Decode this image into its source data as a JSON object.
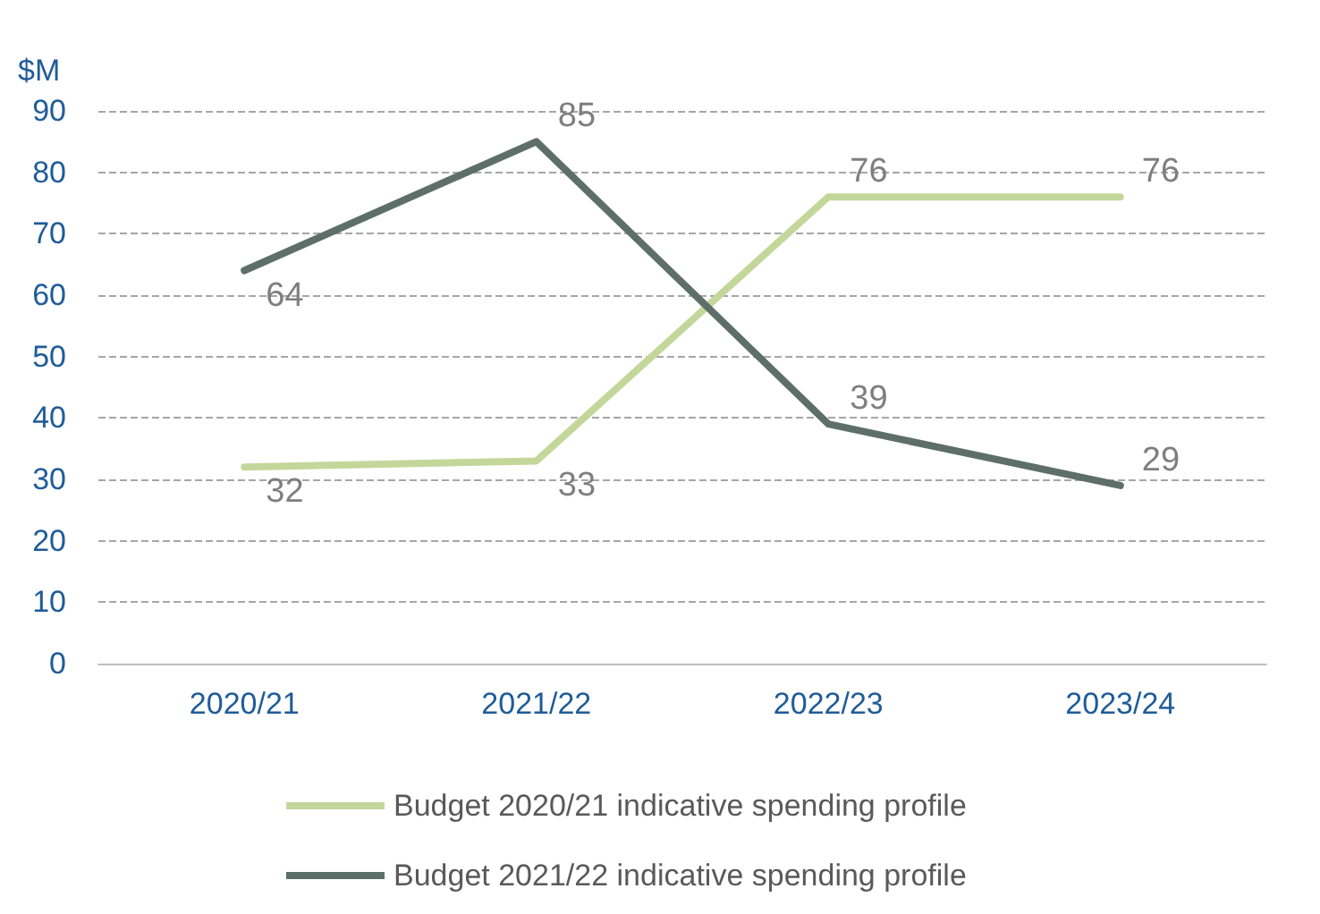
{
  "chart_data": {
    "type": "line",
    "ylabel": "$M",
    "categories": [
      "2020/21",
      "2021/22",
      "2022/23",
      "2023/24"
    ],
    "series": [
      {
        "name": "Budget 2020/21 indicative spending profile",
        "color": "#c4d79b",
        "values": [
          32,
          33,
          76,
          76
        ]
      },
      {
        "name": "Budget 2021/22 indicative spending profile",
        "color": "#5d6f68",
        "values": [
          64,
          85,
          39,
          29
        ]
      }
    ],
    "ylim": [
      0,
      90
    ],
    "yticks": [
      0,
      10,
      20,
      30,
      40,
      50,
      60,
      70,
      80,
      90
    ],
    "grid": "y",
    "legend": "bottom",
    "marker": "none",
    "line_style": "solid",
    "data_labels": true
  }
}
